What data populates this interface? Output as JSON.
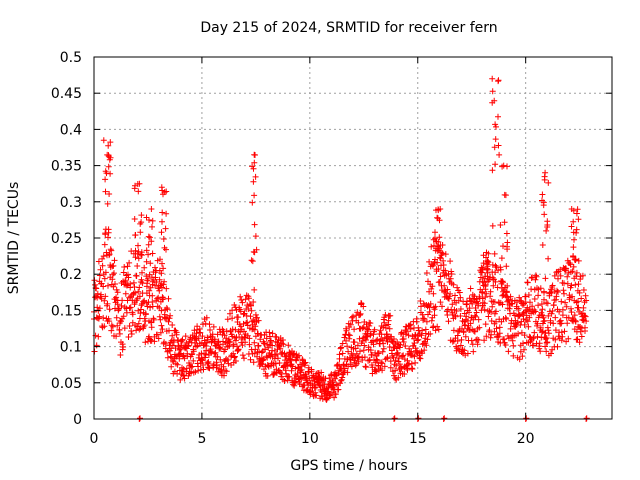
{
  "chart_data": {
    "type": "scatter",
    "title": "Day 215 of 2024, SRMTID for receiver fern",
    "xlabel": "GPS time / hours",
    "ylabel": "SRMTID / TECUs",
    "xlim": [
      0,
      24
    ],
    "ylim": [
      0,
      0.5
    ],
    "xticks": [
      0,
      5,
      10,
      15,
      20
    ],
    "xtick_labels": [
      "0",
      "5",
      "10",
      "15",
      "20"
    ],
    "yticks": [
      0,
      0.05,
      0.1,
      0.15,
      0.2,
      0.25,
      0.3,
      0.35,
      0.4,
      0.45,
      0.5
    ],
    "ytick_labels": [
      "0",
      "0.05",
      "0.1",
      "0.15",
      "0.2",
      "0.25",
      "0.3",
      "0.35",
      "0.4",
      "0.45",
      "0.5"
    ],
    "grid": true,
    "marker": "+",
    "color": "#ff0000",
    "series": [
      {
        "name": "SRMTID",
        "trend": [
          [
            0.0,
            0.14
          ],
          [
            0.3,
            0.17
          ],
          [
            0.6,
            0.2
          ],
          [
            0.9,
            0.17
          ],
          [
            1.2,
            0.13
          ],
          [
            1.5,
            0.17
          ],
          [
            1.8,
            0.18
          ],
          [
            2.1,
            0.17
          ],
          [
            2.4,
            0.16
          ],
          [
            2.7,
            0.15
          ],
          [
            3.0,
            0.17
          ],
          [
            3.3,
            0.15
          ],
          [
            3.6,
            0.1
          ],
          [
            4.0,
            0.08
          ],
          [
            4.5,
            0.09
          ],
          [
            5.0,
            0.1
          ],
          [
            5.5,
            0.11
          ],
          [
            6.0,
            0.09
          ],
          [
            6.5,
            0.12
          ],
          [
            7.0,
            0.13
          ],
          [
            7.4,
            0.12
          ],
          [
            7.8,
            0.09
          ],
          [
            8.3,
            0.09
          ],
          [
            8.8,
            0.08
          ],
          [
            9.3,
            0.07
          ],
          [
            9.7,
            0.06
          ],
          [
            10.2,
            0.05
          ],
          [
            10.7,
            0.045
          ],
          [
            11.2,
            0.05
          ],
          [
            11.6,
            0.09
          ],
          [
            12.0,
            0.11
          ],
          [
            12.4,
            0.12
          ],
          [
            12.8,
            0.1
          ],
          [
            13.2,
            0.085
          ],
          [
            13.6,
            0.12
          ],
          [
            14.0,
            0.08
          ],
          [
            14.4,
            0.095
          ],
          [
            14.8,
            0.1
          ],
          [
            15.2,
            0.13
          ],
          [
            15.6,
            0.18
          ],
          [
            16.0,
            0.19
          ],
          [
            16.4,
            0.17
          ],
          [
            16.8,
            0.14
          ],
          [
            17.2,
            0.13
          ],
          [
            17.6,
            0.14
          ],
          [
            18.0,
            0.16
          ],
          [
            18.4,
            0.17
          ],
          [
            18.8,
            0.16
          ],
          [
            19.2,
            0.13
          ],
          [
            19.6,
            0.12
          ],
          [
            20.0,
            0.14
          ],
          [
            20.5,
            0.15
          ],
          [
            21.0,
            0.13
          ],
          [
            21.4,
            0.15
          ],
          [
            21.8,
            0.16
          ],
          [
            22.2,
            0.17
          ],
          [
            22.6,
            0.15
          ],
          [
            22.8,
            0.14
          ]
        ],
        "peaks": [
          [
            0.6,
            0.385
          ],
          [
            2.05,
            0.325
          ],
          [
            2.6,
            0.29
          ],
          [
            3.2,
            0.32
          ],
          [
            7.45,
            0.365
          ],
          [
            15.9,
            0.29
          ],
          [
            18.1,
            0.23
          ],
          [
            18.6,
            0.47
          ],
          [
            19.0,
            0.35
          ],
          [
            20.9,
            0.34
          ],
          [
            22.3,
            0.29
          ]
        ],
        "zero_points": [
          2.1,
          13.9,
          15.0,
          16.2,
          20.0,
          22.8
        ]
      }
    ]
  }
}
